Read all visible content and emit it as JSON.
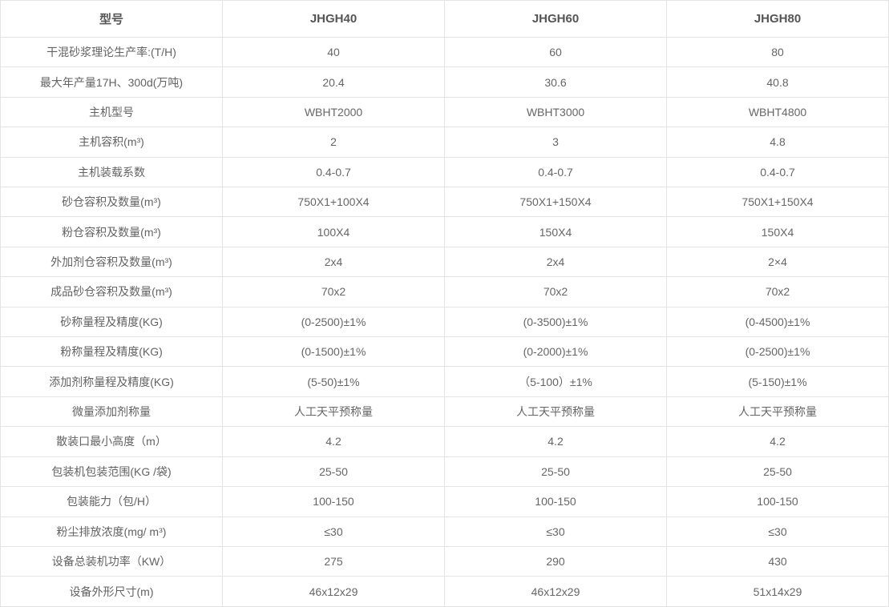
{
  "table": {
    "header": [
      "型号",
      "JHGH40",
      "JHGH60",
      "JHGH80"
    ],
    "rows": [
      {
        "label": "干混砂浆理论生产率:(T/H)",
        "values": [
          "40",
          "60",
          "80"
        ]
      },
      {
        "label": "最大年产量17H、300d(万吨)",
        "values": [
          "20.4",
          "30.6",
          "40.8"
        ]
      },
      {
        "label": "主机型号",
        "values": [
          "WBHT2000",
          "WBHT3000",
          "WBHT4800"
        ]
      },
      {
        "label": "主机容积(m³)",
        "values": [
          "2",
          "3",
          "4.8"
        ]
      },
      {
        "label": "主机装载系数",
        "values": [
          "0.4-0.7",
          "0.4-0.7",
          "0.4-0.7"
        ]
      },
      {
        "label": "砂仓容积及数量(m³)",
        "values": [
          "750X1+100X4",
          "750X1+150X4",
          "750X1+150X4"
        ]
      },
      {
        "label": "粉仓容积及数量(m³)",
        "values": [
          "100X4",
          "150X4",
          "150X4"
        ]
      },
      {
        "label": "外加剂仓容积及数量(m³)",
        "values": [
          "2x4",
          "2x4",
          "2×4"
        ]
      },
      {
        "label": "成品砂仓容积及数量(m³)",
        "values": [
          "70x2",
          "70x2",
          "70x2"
        ]
      },
      {
        "label": "砂称量程及精度(KG)",
        "values": [
          "(0-2500)±1%",
          "(0-3500)±1%",
          "(0-4500)±1%"
        ]
      },
      {
        "label": "粉称量程及精度(KG)",
        "values": [
          "(0-1500)±1%",
          "(0-2000)±1%",
          "(0-2500)±1%"
        ]
      },
      {
        "label": "添加剂称量程及精度(KG)",
        "values": [
          "(5-50)±1%",
          "（5-100）±1%",
          "(5-150)±1%"
        ]
      },
      {
        "label": "微量添加剂称量",
        "values": [
          "人工天平预称量",
          "人工天平预称量",
          "人工天平预称量"
        ]
      },
      {
        "label": "散装口最小高度（m）",
        "values": [
          "4.2",
          "4.2",
          "4.2"
        ]
      },
      {
        "label": "包装机包装范围(KG /袋)",
        "values": [
          "25-50",
          "25-50",
          "25-50"
        ]
      },
      {
        "label": "包装能力（包/H）",
        "values": [
          "100-150",
          "100-150",
          "100-150"
        ]
      },
      {
        "label": "粉尘排放浓度(mg/ m³)",
        "values": [
          "≤30",
          "≤30",
          "≤30"
        ]
      },
      {
        "label": "设备总装机功率（KW）",
        "values": [
          "275",
          "290",
          "430"
        ]
      },
      {
        "label": "设备外形尺寸(m)",
        "values": [
          "46x12x29",
          "46x12x29",
          "51x14x29"
        ]
      }
    ]
  },
  "colors": {
    "border": "#e4e4e4",
    "header_text": "#555555",
    "body_text": "#666666",
    "background": "#ffffff"
  }
}
